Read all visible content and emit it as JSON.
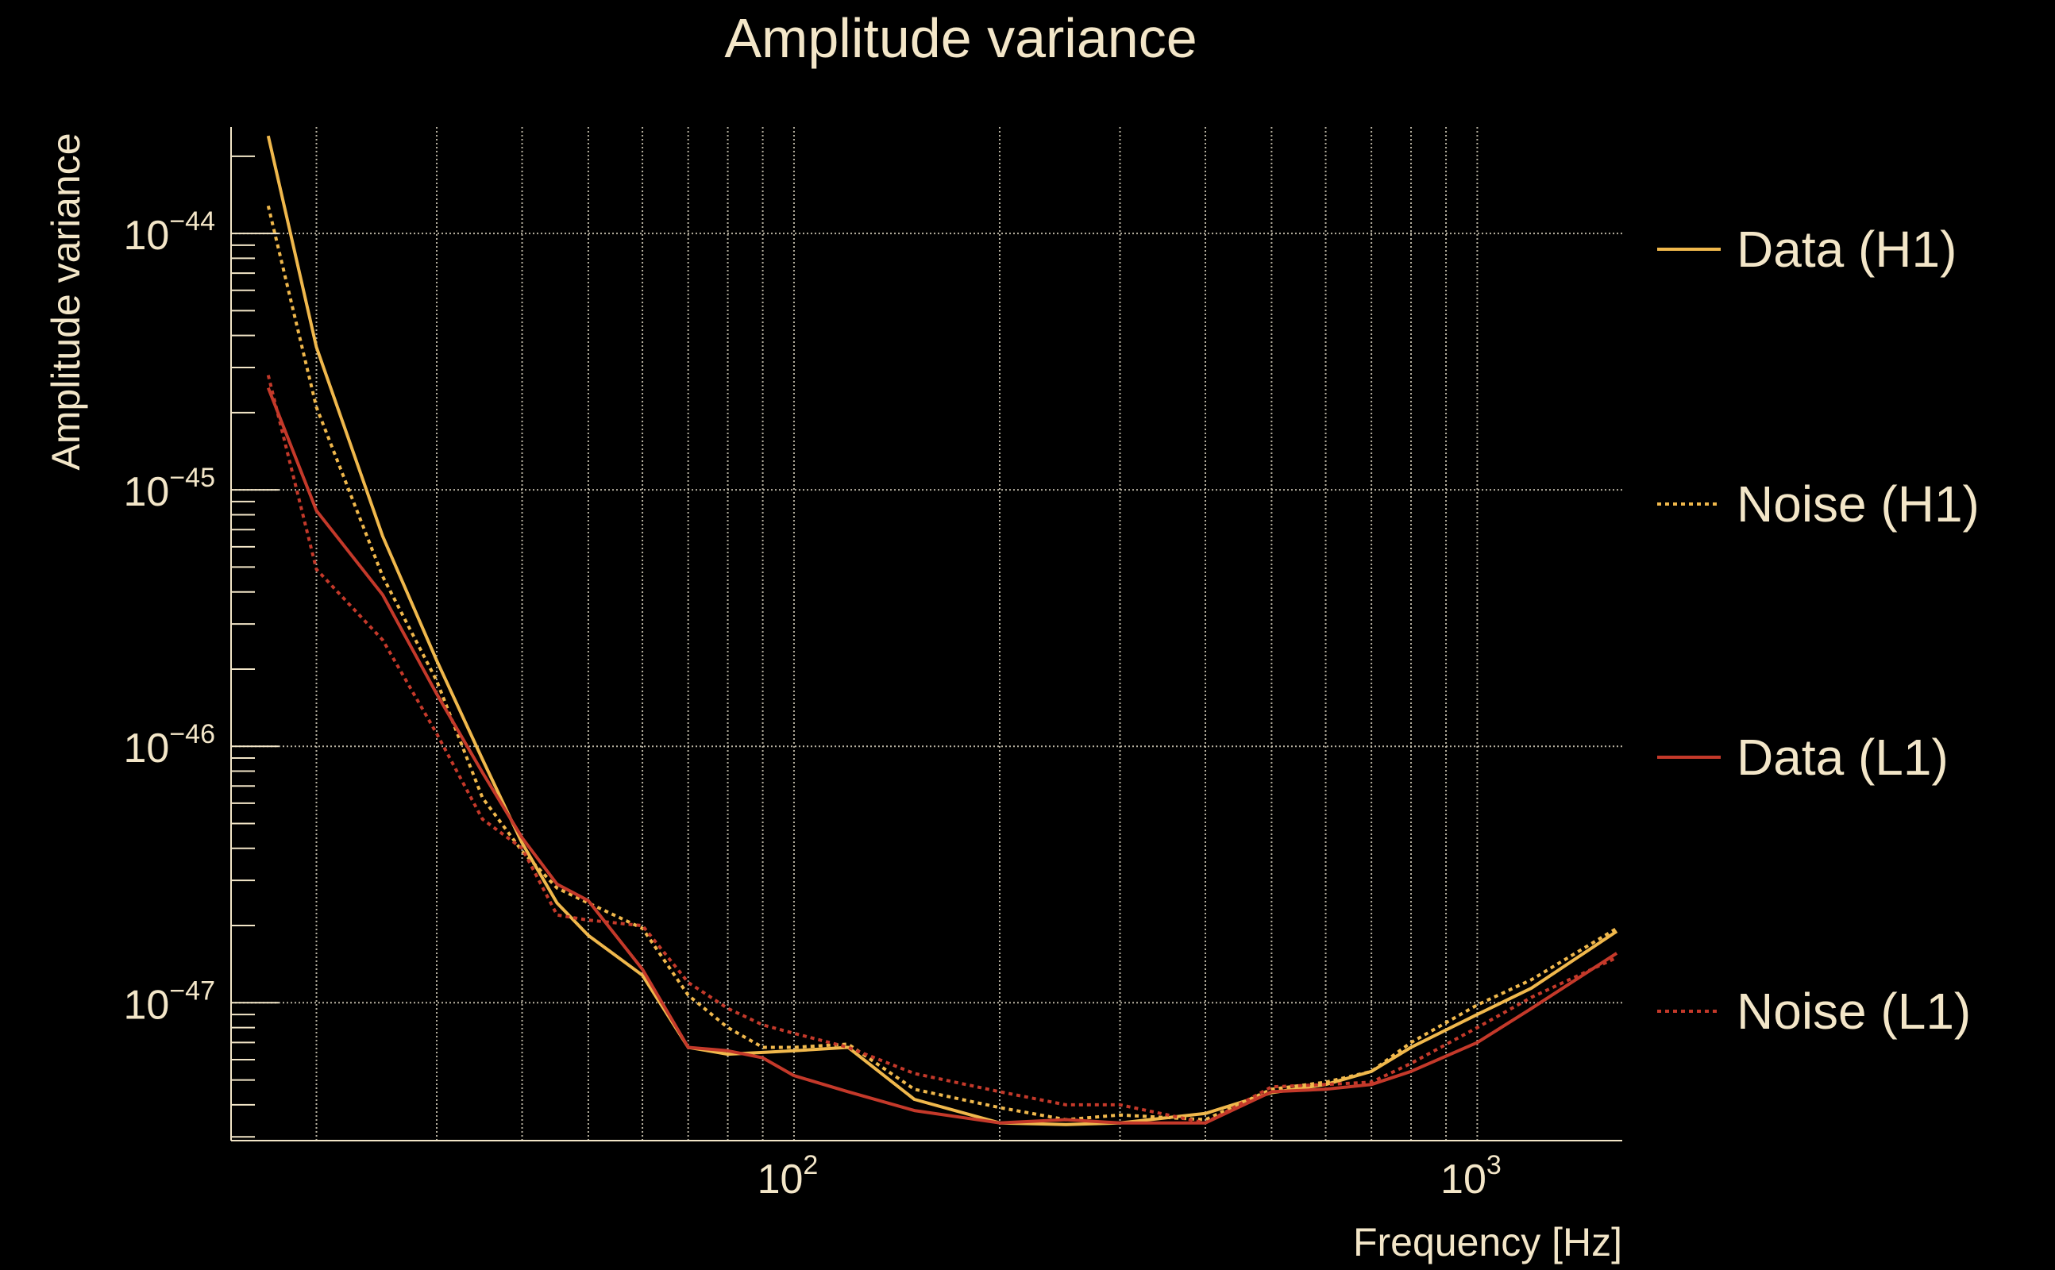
{
  "colors": {
    "text": "#f3e6c8",
    "grid": "#d8d0bc",
    "h1": "#f0b84c",
    "l1": "#c4392a",
    "background": "#000000"
  },
  "chart_data": {
    "type": "line",
    "title": "Amplitude variance",
    "xlabel": "Frequency [Hz]",
    "ylabel": "Amplitude variance",
    "xscale": "log",
    "yscale": "log",
    "xlim": [
      15,
      1630
    ],
    "ylim": [
      2.9e-48,
      2.6e-44
    ],
    "grid": true,
    "legend_placement": "right, outside",
    "x_ticks": [
      {
        "value": 100,
        "base": "10",
        "exp": "2"
      },
      {
        "value": 1000,
        "base": "10",
        "exp": "3"
      }
    ],
    "y_ticks": [
      {
        "value": 1e-44,
        "base": "10",
        "exp": "−44"
      },
      {
        "value": 1e-45,
        "base": "10",
        "exp": "−45"
      },
      {
        "value": 1e-46,
        "base": "10",
        "exp": "−46"
      },
      {
        "value": 1e-47,
        "base": "10",
        "exp": "−47"
      }
    ],
    "x": [
      17,
      20,
      25,
      30,
      35,
      40,
      45,
      50,
      60,
      70,
      80,
      90,
      100,
      120,
      150,
      200,
      250,
      300,
      400,
      500,
      600,
      700,
      800,
      1000,
      1200,
      1600
    ],
    "series": [
      {
        "name": "Data (H1)",
        "color": "#f0b84c",
        "style": "solid",
        "values": [
          2.4e-44,
          3.6e-45,
          6.6e-46,
          2.16e-46,
          8.9e-47,
          4.2e-47,
          2.45e-47,
          1.83e-47,
          1.28e-47,
          6.7e-48,
          6.3e-48,
          6.4e-48,
          6.5e-48,
          6.7e-48,
          4.2e-48,
          3.4e-48,
          3.35e-48,
          3.4e-48,
          3.7e-48,
          4.46e-48,
          4.8e-48,
          5.4e-48,
          6.7e-48,
          9e-48,
          1.14e-47,
          1.9e-47
        ]
      },
      {
        "name": "Noise (H1)",
        "color": "#f0b84c",
        "style": "dotted",
        "values": [
          1.28e-44,
          2.1e-45,
          4.6e-46,
          1.8e-46,
          6.3e-47,
          3.9e-47,
          2.8e-47,
          2.45e-47,
          1.95e-47,
          1.07e-47,
          8e-48,
          6.7e-48,
          6.7e-48,
          6.9e-48,
          4.6e-48,
          3.9e-48,
          3.5e-48,
          3.65e-48,
          3.5e-48,
          4.6e-48,
          4.9e-48,
          5.4e-48,
          7e-48,
          9.8e-48,
          1.23e-47,
          1.95e-47
        ]
      },
      {
        "name": "Data (L1)",
        "color": "#c4392a",
        "style": "solid",
        "values": [
          2.5e-45,
          8.3e-46,
          3.9e-46,
          1.6e-46,
          7.9e-47,
          4.4e-47,
          2.9e-47,
          2.5e-47,
          1.35e-47,
          6.7e-48,
          6.5e-48,
          6.1e-48,
          5.2e-48,
          4.5e-48,
          3.8e-48,
          3.4e-48,
          3.5e-48,
          3.4e-48,
          3.4e-48,
          4.5e-48,
          4.6e-48,
          4.8e-48,
          5.4e-48,
          7e-48,
          9.5e-48,
          1.56e-47
        ]
      },
      {
        "name": "Noise (L1)",
        "color": "#c4392a",
        "style": "dotted",
        "values": [
          2.8e-45,
          4.9e-46,
          2.6e-46,
          1.12e-46,
          5.2e-47,
          4e-47,
          2.2e-47,
          2.1e-47,
          2e-47,
          1.2e-47,
          9.5e-48,
          8.2e-48,
          7.6e-48,
          6.7e-48,
          5.3e-48,
          4.5e-48,
          4e-48,
          4e-48,
          3.4e-48,
          4.7e-48,
          4.8e-48,
          4.9e-48,
          5.8e-48,
          8e-48,
          1.05e-47,
          1.5e-47
        ]
      }
    ]
  }
}
